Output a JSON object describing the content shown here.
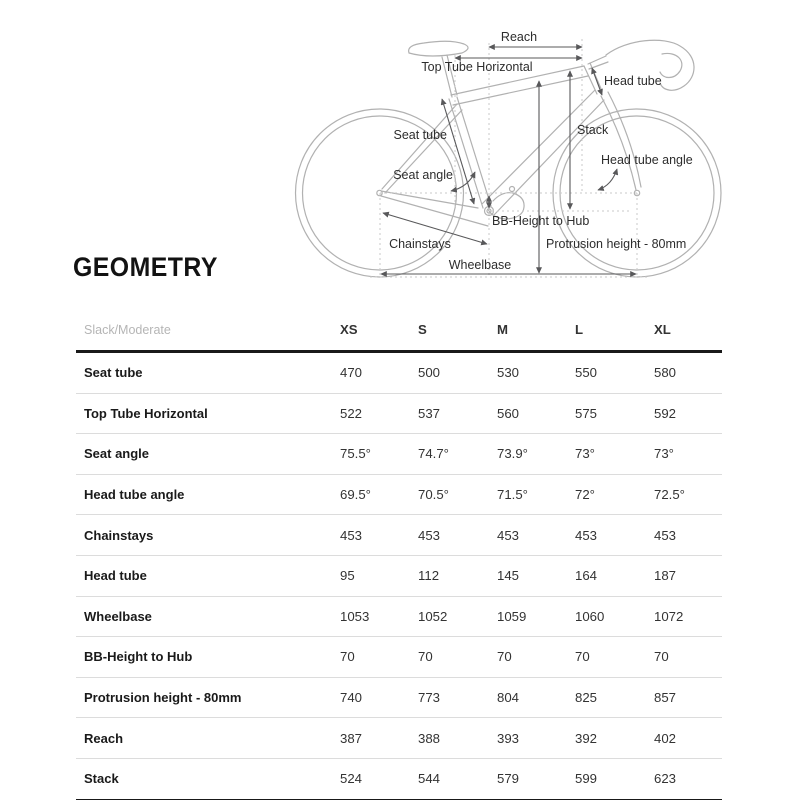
{
  "heading": "GEOMETRY",
  "diagram": {
    "labels": {
      "reach": "Reach",
      "top_tube_horizontal": "Top Tube Horizontal",
      "head_tube": "Head tube",
      "seat_tube": "Seat tube",
      "stack": "Stack",
      "head_tube_angle": "Head tube angle",
      "seat_angle": "Seat angle",
      "bb_height_to_hub": "BB-Height to Hub",
      "chainstays": "Chainstays",
      "protrusion_height": "Protrusion height - 80mm",
      "wheelbase": "Wheelbase"
    }
  },
  "table": {
    "first_header": "Slack/Moderate",
    "size_headers": [
      "XS",
      "S",
      "M",
      "L",
      "XL"
    ],
    "rows": [
      {
        "label": "Seat tube",
        "values": [
          "470",
          "500",
          "530",
          "550",
          "580"
        ]
      },
      {
        "label": "Top Tube Horizontal",
        "values": [
          "522",
          "537",
          "560",
          "575",
          "592"
        ]
      },
      {
        "label": "Seat angle",
        "values": [
          "75.5°",
          "74.7°",
          "73.9°",
          "73°",
          "73°"
        ]
      },
      {
        "label": "Head tube angle",
        "values": [
          "69.5°",
          "70.5°",
          "71.5°",
          "72°",
          "72.5°"
        ]
      },
      {
        "label": "Chainstays",
        "values": [
          "453",
          "453",
          "453",
          "453",
          "453"
        ]
      },
      {
        "label": "Head tube",
        "values": [
          "95",
          "112",
          "145",
          "164",
          "187"
        ]
      },
      {
        "label": "Wheelbase",
        "values": [
          "1053",
          "1052",
          "1059",
          "1060",
          "1072"
        ]
      },
      {
        "label": "BB-Height to Hub",
        "values": [
          "70",
          "70",
          "70",
          "70",
          "70"
        ]
      },
      {
        "label": "Protrusion height - 80mm",
        "values": [
          "740",
          "773",
          "804",
          "825",
          "857"
        ]
      },
      {
        "label": "Reach",
        "values": [
          "387",
          "388",
          "393",
          "392",
          "402"
        ]
      },
      {
        "label": "Stack",
        "values": [
          "524",
          "544",
          "579",
          "599",
          "623"
        ]
      }
    ]
  },
  "colors": {
    "background": "#ffffff",
    "frame_line": "#b1b1b1",
    "dimension_line": "#58585a",
    "dotted_line": "#c9c9c9",
    "label_text": "#2d2d2d",
    "heading_text": "#121212",
    "table_header_muted": "#b5b5b5",
    "table_value_text": "#333333",
    "table_label_text": "#1a1a1a",
    "border_dark": "#191919",
    "border_light": "#dcdcdc"
  }
}
